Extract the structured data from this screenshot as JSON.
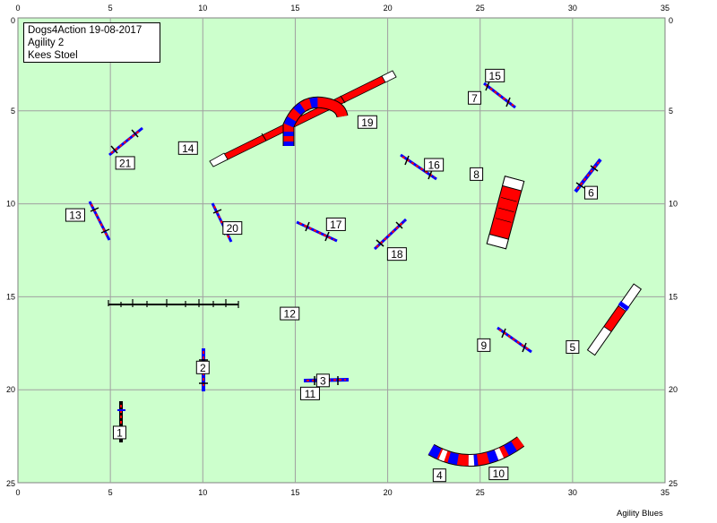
{
  "header": {
    "title": "Dogs4Action 19-08-2017",
    "class": "Agility 2",
    "judge": "Kees Stoel"
  },
  "footer": {
    "credit": "Agility Blues"
  },
  "grid": {
    "x_ticks": [
      0,
      5,
      10,
      15,
      20,
      25,
      30,
      35
    ],
    "y_ticks": [
      0,
      5,
      10,
      15,
      20,
      25
    ],
    "x_range": [
      0,
      35
    ],
    "y_range": [
      0,
      25
    ]
  },
  "colors": {
    "field": "#ccffcc",
    "grid": "#a0a0a0",
    "red": "#ff0000",
    "blue": "#0000ff",
    "white": "#ffffff",
    "black": "#000000"
  },
  "obstacles": [
    {
      "number": "1",
      "type": "jump",
      "x": 5.5,
      "y": 22.3
    },
    {
      "number": "2",
      "type": "jump",
      "x": 10.0,
      "y": 18.8
    },
    {
      "number": "3",
      "type": "jump",
      "x": 16.5,
      "y": 19.5
    },
    {
      "number": "4",
      "type": "tunnel",
      "x": 22.8,
      "y": 24.6
    },
    {
      "number": "5",
      "type": "a-frame",
      "x": 30.0,
      "y": 17.7
    },
    {
      "number": "6",
      "type": "jump",
      "x": 31.0,
      "y": 9.4
    },
    {
      "number": "7",
      "type": "jump",
      "x": 24.7,
      "y": 4.3
    },
    {
      "number": "8",
      "type": "seesaw",
      "x": 24.8,
      "y": 8.4
    },
    {
      "number": "9",
      "type": "jump",
      "x": 25.2,
      "y": 17.6
    },
    {
      "number": "10",
      "type": "tunnel",
      "x": 26.0,
      "y": 24.5
    },
    {
      "number": "11",
      "type": "jump",
      "x": 15.8,
      "y": 20.2
    },
    {
      "number": "12",
      "type": "dogwalk",
      "x": 14.7,
      "y": 15.9
    },
    {
      "number": "13",
      "type": "jump",
      "x": 3.1,
      "y": 10.6
    },
    {
      "number": "14",
      "type": "dogwalk",
      "x": 9.2,
      "y": 7.0
    },
    {
      "number": "15",
      "type": "jump",
      "x": 25.8,
      "y": 3.1
    },
    {
      "number": "16",
      "type": "jump",
      "x": 22.5,
      "y": 7.9
    },
    {
      "number": "17",
      "type": "jump",
      "x": 17.2,
      "y": 11.1
    },
    {
      "number": "18",
      "type": "jump",
      "x": 20.5,
      "y": 12.7
    },
    {
      "number": "19",
      "type": "tunnel",
      "x": 18.9,
      "y": 5.6
    },
    {
      "number": "20",
      "type": "jump",
      "x": 11.6,
      "y": 11.3
    },
    {
      "number": "21",
      "type": "jump",
      "x": 5.8,
      "y": 7.8
    }
  ]
}
